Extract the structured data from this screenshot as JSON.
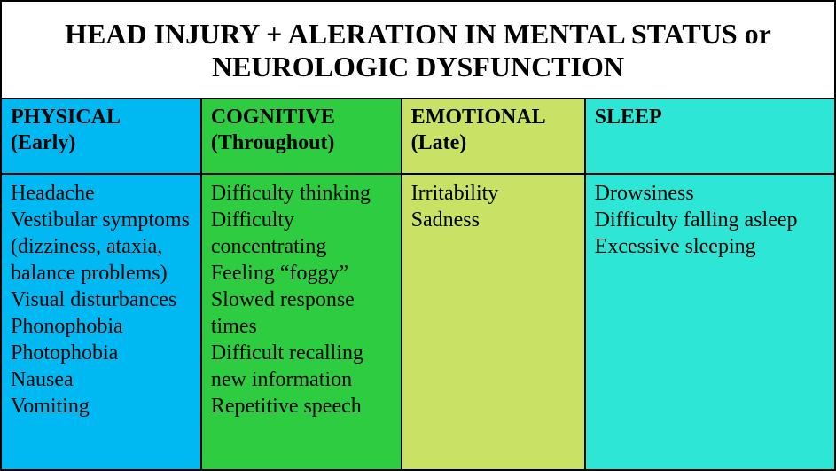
{
  "table": {
    "type": "table",
    "title": "HEAD INJURY + ALERATION IN MENTAL STATUS or NEUROLOGIC DYSFUNCTION",
    "title_fontsize": 32,
    "title_color": "#000000",
    "title_bg": "#ffffff",
    "border_color": "#000000",
    "border_width": 2,
    "header_fontsize": 24,
    "body_fontsize": 24,
    "text_color": "#000000",
    "column_widths_pct": [
      24,
      24,
      22,
      30
    ],
    "columns": [
      {
        "name": "PHYSICAL",
        "timing": "(Early)",
        "bg": "#00b9f2",
        "items": [
          "Headache",
          "Vestibular symptoms (dizziness, ataxia, balance problems)",
          "Visual disturbances",
          "Phonophobia",
          "Photophobia",
          "Nausea",
          "Vomiting"
        ]
      },
      {
        "name": "COGNITIVE",
        "timing": "(Throughout)",
        "bg": "#2ecc40",
        "items": [
          "Difficulty thinking",
          "Difficulty concentrating",
          "Feeling “foggy”",
          "Slowed response times",
          "Difficult recalling new information",
          "Repetitive speech"
        ]
      },
      {
        "name": "EMOTIONAL",
        "timing": "(Late)",
        "bg": "#c9e265",
        "items": [
          "Irritability",
          "Sadness"
        ]
      },
      {
        "name": "SLEEP",
        "timing": "",
        "bg": "#2ee6d6",
        "items": [
          "Drowsiness",
          "Difficulty falling asleep",
          "Excessive sleeping"
        ]
      }
    ]
  }
}
